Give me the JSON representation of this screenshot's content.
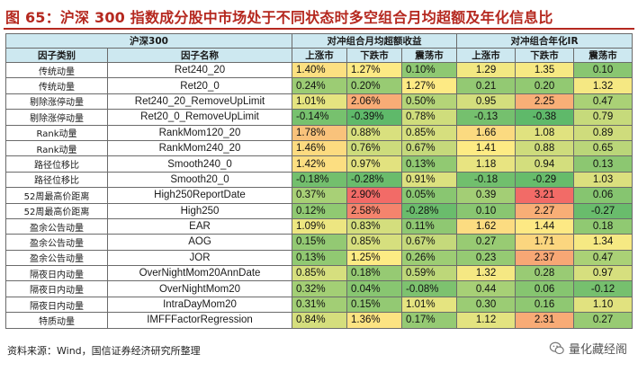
{
  "title": "图 65：沪深 300 指数成分股中市场处于不同状态时多空组合月均超额及年化信息比",
  "header": {
    "universe": "沪深300",
    "group_return": "对冲组合月均超额收益",
    "group_ir": "对冲组合年化IR",
    "col_category": "因子类别",
    "col_name": "因子名称",
    "states": [
      "上涨市",
      "下跌市",
      "震荡市"
    ]
  },
  "rows": [
    {
      "category": "传统动量",
      "name": "Ret240_20",
      "ret": [
        "1.40%",
        "1.27%",
        "0.10%"
      ],
      "ir": [
        "1.29",
        "1.35",
        "0.10"
      ]
    },
    {
      "category": "传统动量",
      "name": "Ret20_0",
      "ret": [
        "0.24%",
        "0.20%",
        "1.27%"
      ],
      "ir": [
        "0.21",
        "0.20",
        "1.32"
      ]
    },
    {
      "category": "剔除涨停动量",
      "name": "Ret240_20_RemoveUpLimit",
      "ret": [
        "1.01%",
        "2.06%",
        "0.50%"
      ],
      "ir": [
        "0.95",
        "2.25",
        "0.47"
      ]
    },
    {
      "category": "剔除涨停动量",
      "name": "Ret20_0_RemoveUpLimit",
      "ret": [
        "-0.14%",
        "-0.39%",
        "0.78%"
      ],
      "ir": [
        "-0.13",
        "-0.38",
        "0.79"
      ]
    },
    {
      "category": "Rank动量",
      "name": "RankMom120_20",
      "ret": [
        "1.78%",
        "0.88%",
        "0.85%"
      ],
      "ir": [
        "1.66",
        "1.08",
        "0.89"
      ]
    },
    {
      "category": "Rank动量",
      "name": "RankMom240_20",
      "ret": [
        "1.46%",
        "0.76%",
        "0.67%"
      ],
      "ir": [
        "1.41",
        "0.88",
        "0.65"
      ]
    },
    {
      "category": "路径位移比",
      "name": "Smooth240_0",
      "ret": [
        "1.42%",
        "0.97%",
        "0.13%"
      ],
      "ir": [
        "1.18",
        "0.94",
        "0.13"
      ]
    },
    {
      "category": "路径位移比",
      "name": "Smooth20_0",
      "ret": [
        "-0.18%",
        "-0.28%",
        "0.91%"
      ],
      "ir": [
        "-0.18",
        "-0.29",
        "1.03"
      ]
    },
    {
      "category": "52周最高价距离",
      "name": "High250ReportDate",
      "ret": [
        "0.37%",
        "2.90%",
        "0.05%"
      ],
      "ir": [
        "0.39",
        "3.21",
        "0.06"
      ]
    },
    {
      "category": "52周最高价距离",
      "name": "High250",
      "ret": [
        "0.12%",
        "2.58%",
        "-0.28%"
      ],
      "ir": [
        "0.10",
        "2.27",
        "-0.27"
      ]
    },
    {
      "category": "盈余公告动量",
      "name": "EAR",
      "ret": [
        "1.09%",
        "0.83%",
        "0.11%"
      ],
      "ir": [
        "1.62",
        "1.44",
        "0.18"
      ]
    },
    {
      "category": "盈余公告动量",
      "name": "AOG",
      "ret": [
        "0.15%",
        "0.85%",
        "0.67%"
      ],
      "ir": [
        "0.27",
        "1.71",
        "1.34"
      ]
    },
    {
      "category": "盈余公告动量",
      "name": "JOR",
      "ret": [
        "0.13%",
        "1.25%",
        "0.26%"
      ],
      "ir": [
        "0.23",
        "2.37",
        "0.47"
      ]
    },
    {
      "category": "隔夜日内动量",
      "name": "OverNightMom20AnnDate",
      "ret": [
        "0.85%",
        "0.18%",
        "0.59%"
      ],
      "ir": [
        "1.32",
        "0.28",
        "0.97"
      ]
    },
    {
      "category": "隔夜日内动量",
      "name": "OverNightMom20",
      "ret": [
        "0.32%",
        "0.04%",
        "-0.08%"
      ],
      "ir": [
        "0.44",
        "0.06",
        "-0.12"
      ]
    },
    {
      "category": "隔夜日内动量",
      "name": "IntraDayMom20",
      "ret": [
        "0.31%",
        "0.15%",
        "1.01%"
      ],
      "ir": [
        "0.30",
        "0.16",
        "1.10"
      ]
    },
    {
      "category": "特质动量",
      "name": "IMFFFactorRegression",
      "ret": [
        "0.84%",
        "1.36%",
        "0.17%"
      ],
      "ir": [
        "1.12",
        "2.31",
        "0.27"
      ]
    }
  ],
  "colors": {
    "title": "#b5281f",
    "header_bg": "#cde8f0",
    "scale_low": "#5fb96a",
    "scale_mid": "#fdeb84",
    "scale_high": "#f26b67"
  },
  "source": "资料来源：Wind，国信证券经济研究所整理",
  "watermark": "量化藏经阁"
}
